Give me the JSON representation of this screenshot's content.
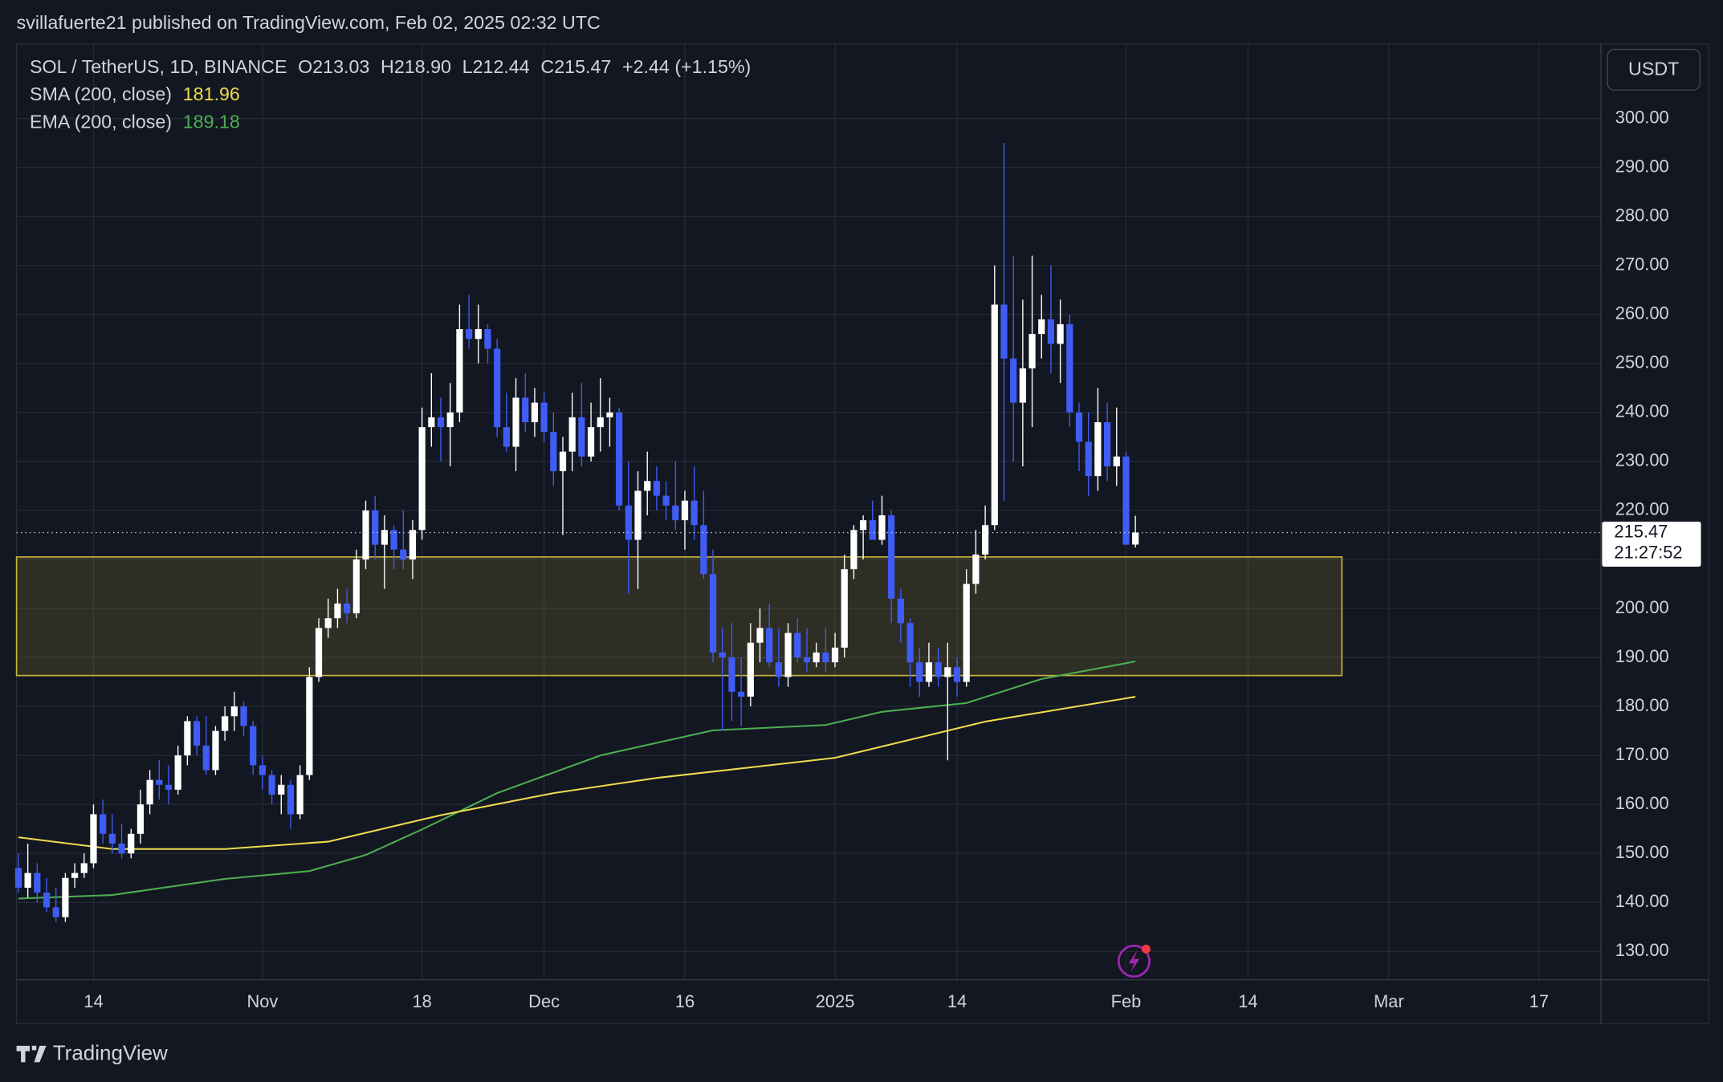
{
  "header": "svillafuerte21 published on TradingView.com, Feb 02, 2025 02:32 UTC",
  "chart_data": {
    "type": "candlestick",
    "title": "SOL / TetherUS, 1D, BINANCE",
    "ohlc_labels": [
      "O",
      "H",
      "L",
      "C"
    ],
    "last_labels": [
      "213.03",
      "218.90",
      "212.44",
      "215.47"
    ],
    "change": "+2.44 (+1.15%)",
    "up_color": "#ffffff",
    "down_color": "#3f5cf5",
    "candles": [
      [
        147,
        150,
        142,
        143
      ],
      [
        143,
        152,
        141,
        146
      ],
      [
        146,
        148,
        140,
        142
      ],
      [
        142,
        145,
        138,
        139
      ],
      [
        139,
        143,
        136,
        137
      ],
      [
        137,
        146,
        136,
        145
      ],
      [
        145,
        148,
        143,
        146
      ],
      [
        146,
        150,
        145,
        148
      ],
      [
        148,
        160,
        147,
        158
      ],
      [
        158,
        161,
        152,
        154
      ],
      [
        154,
        158,
        150,
        152
      ],
      [
        152,
        156,
        149,
        150
      ],
      [
        150,
        155,
        149,
        154
      ],
      [
        154,
        163,
        152,
        160
      ],
      [
        160,
        167,
        158,
        165
      ],
      [
        165,
        169,
        161,
        164
      ],
      [
        164,
        168,
        160,
        163
      ],
      [
        163,
        172,
        162,
        170
      ],
      [
        170,
        178,
        168,
        177
      ],
      [
        177,
        178,
        170,
        172
      ],
      [
        172,
        178,
        166,
        167
      ],
      [
        167,
        176,
        166,
        175
      ],
      [
        175,
        180,
        173,
        178
      ],
      [
        178,
        183,
        175,
        180
      ],
      [
        180,
        181,
        174,
        176
      ],
      [
        176,
        177,
        166,
        168
      ],
      [
        168,
        170,
        163,
        166
      ],
      [
        166,
        167,
        160,
        162
      ],
      [
        162,
        166,
        158,
        164
      ],
      [
        164,
        165,
        155,
        158
      ],
      [
        158,
        168,
        157,
        166
      ],
      [
        166,
        188,
        165,
        186
      ],
      [
        186,
        198,
        185,
        196
      ],
      [
        196,
        202,
        194,
        198
      ],
      [
        198,
        204,
        196,
        201
      ],
      [
        201,
        204,
        197,
        199
      ],
      [
        199,
        212,
        198,
        210
      ],
      [
        210,
        222,
        208,
        220
      ],
      [
        220,
        223,
        210,
        213
      ],
      [
        213,
        219,
        204,
        216
      ],
      [
        216,
        217,
        208,
        212
      ],
      [
        212,
        220,
        208,
        210
      ],
      [
        210,
        218,
        206,
        216
      ],
      [
        216,
        241,
        214,
        237
      ],
      [
        237,
        248,
        233,
        239
      ],
      [
        239,
        243,
        230,
        237
      ],
      [
        237,
        246,
        229,
        240
      ],
      [
        240,
        262,
        238,
        257
      ],
      [
        257,
        264,
        253,
        255
      ],
      [
        255,
        262,
        250,
        257
      ],
      [
        257,
        258,
        250,
        253
      ],
      [
        253,
        255,
        235,
        237
      ],
      [
        237,
        244,
        232,
        233
      ],
      [
        233,
        247,
        228,
        243
      ],
      [
        243,
        248,
        236,
        238
      ],
      [
        238,
        245,
        235,
        242
      ],
      [
        242,
        244,
        234,
        236
      ],
      [
        236,
        240,
        225,
        228
      ],
      [
        228,
        235,
        215,
        232
      ],
      [
        232,
        244,
        228,
        239
      ],
      [
        239,
        246,
        229,
        231
      ],
      [
        231,
        242,
        230,
        237
      ],
      [
        237,
        247,
        232,
        239
      ],
      [
        239,
        243,
        233,
        240
      ],
      [
        240,
        241,
        220,
        221
      ],
      [
        221,
        230,
        203,
        214
      ],
      [
        214,
        228,
        204,
        224
      ],
      [
        224,
        232,
        219,
        226
      ],
      [
        226,
        229,
        220,
        223
      ],
      [
        223,
        226,
        218,
        221
      ],
      [
        221,
        230,
        216,
        218
      ],
      [
        218,
        224,
        212,
        222
      ],
      [
        222,
        229,
        214,
        217
      ],
      [
        217,
        224,
        206,
        207
      ],
      [
        207,
        212,
        189,
        191
      ],
      [
        191,
        196,
        175,
        190
      ],
      [
        190,
        197,
        177,
        183
      ],
      [
        183,
        190,
        176,
        182
      ],
      [
        182,
        197,
        180,
        193
      ],
      [
        193,
        200,
        189,
        196
      ],
      [
        196,
        201,
        188,
        189
      ],
      [
        189,
        196,
        184,
        186
      ],
      [
        186,
        197,
        184,
        195
      ],
      [
        195,
        198,
        189,
        190
      ],
      [
        190,
        196,
        187,
        189
      ],
      [
        189,
        193,
        188,
        191
      ],
      [
        191,
        196,
        187,
        189
      ],
      [
        189,
        195,
        188,
        192
      ],
      [
        192,
        211,
        190,
        208
      ],
      [
        208,
        217,
        206,
        216
      ],
      [
        216,
        219,
        210,
        218
      ],
      [
        218,
        222,
        214,
        214
      ],
      [
        214,
        223,
        213,
        219
      ],
      [
        219,
        220,
        197,
        202
      ],
      [
        202,
        204,
        193,
        197
      ],
      [
        197,
        198,
        184,
        189
      ],
      [
        189,
        192,
        182,
        185
      ],
      [
        185,
        193,
        184,
        189
      ],
      [
        189,
        192,
        184,
        186
      ],
      [
        186,
        193,
        169,
        188
      ],
      [
        188,
        190,
        182,
        185
      ],
      [
        185,
        208,
        184,
        205
      ],
      [
        205,
        216,
        203,
        211
      ],
      [
        211,
        221,
        210,
        217
      ],
      [
        217,
        270,
        216,
        262
      ],
      [
        262,
        295,
        222,
        251
      ],
      [
        251,
        272,
        230,
        242
      ],
      [
        242,
        263,
        229,
        249
      ],
      [
        249,
        272,
        237,
        256
      ],
      [
        256,
        264,
        251,
        259
      ],
      [
        259,
        270,
        248,
        254
      ],
      [
        254,
        263,
        246,
        258
      ],
      [
        258,
        260,
        237,
        240
      ],
      [
        240,
        242,
        228,
        234
      ],
      [
        234,
        240,
        223,
        227
      ],
      [
        227,
        245,
        224,
        238
      ],
      [
        238,
        242,
        226,
        229
      ],
      [
        229,
        241,
        225,
        231
      ],
      [
        231,
        232,
        213,
        213
      ],
      [
        213.03,
        218.9,
        212.44,
        215.47
      ]
    ],
    "sma": {
      "name": "SMA (200, close)",
      "color": "#f0dc4e",
      "x": [
        0,
        10,
        22,
        33,
        45,
        57,
        68,
        87,
        103,
        119
      ],
      "values": [
        153.3,
        150.9,
        150.9,
        152.4,
        157.8,
        162.3,
        165.4,
        169.5,
        176.9,
        181.96
      ]
    },
    "ema": {
      "name": "EMA (200, close)",
      "color": "#4caf50",
      "x": [
        0,
        10,
        22,
        31,
        37,
        43,
        51,
        62,
        74,
        86,
        92,
        101,
        109,
        119
      ],
      "values": [
        140.8,
        141.5,
        144.8,
        146.4,
        149.7,
        154.9,
        162.3,
        170,
        175.1,
        176.2,
        178.9,
        180.7,
        185.6,
        189.18
      ]
    },
    "zone": {
      "from": 186.3,
      "to": 210.5,
      "x_end": 141,
      "color": "#c9b53a"
    },
    "xlim": [
      -0.2,
      168.6
    ],
    "ylim": [
      124.2,
      315.2
    ],
    "xticks": [
      {
        "value": 8,
        "label": "14"
      },
      {
        "value": 26,
        "label": "Nov"
      },
      {
        "value": 43,
        "label": "18"
      },
      {
        "value": 56,
        "label": "Dec"
      },
      {
        "value": 71,
        "label": "16"
      },
      {
        "value": 87,
        "label": "2025"
      },
      {
        "value": 100,
        "label": "14"
      },
      {
        "value": 118,
        "label": "Feb"
      },
      {
        "value": 131,
        "label": "14"
      },
      {
        "value": 146,
        "label": "Mar"
      },
      {
        "value": 162,
        "label": "17"
      }
    ],
    "yticks": [
      {
        "value": 130,
        "label": "130.00"
      },
      {
        "value": 140,
        "label": "140.00"
      },
      {
        "value": 150,
        "label": "150.00"
      },
      {
        "value": 160,
        "label": "160.00"
      },
      {
        "value": 170,
        "label": "170.00"
      },
      {
        "value": 180,
        "label": "180.00"
      },
      {
        "value": 190,
        "label": "190.00"
      },
      {
        "value": 200,
        "label": "200.00"
      },
      {
        "value": 210,
        "label": "210.00"
      },
      {
        "value": 220,
        "label": "220.00"
      },
      {
        "value": 230,
        "label": "230.00"
      },
      {
        "value": 240,
        "label": "240.00"
      },
      {
        "value": 250,
        "label": "250.00"
      },
      {
        "value": 260,
        "label": "260.00"
      },
      {
        "value": 270,
        "label": "270.00"
      },
      {
        "value": 280,
        "label": "280.00"
      },
      {
        "value": 290,
        "label": "290.00"
      },
      {
        "value": 300,
        "label": "300.00"
      }
    ],
    "grid": true,
    "currency": "USDT",
    "countdown": "21:27:52"
  },
  "watermark": "TradingView"
}
